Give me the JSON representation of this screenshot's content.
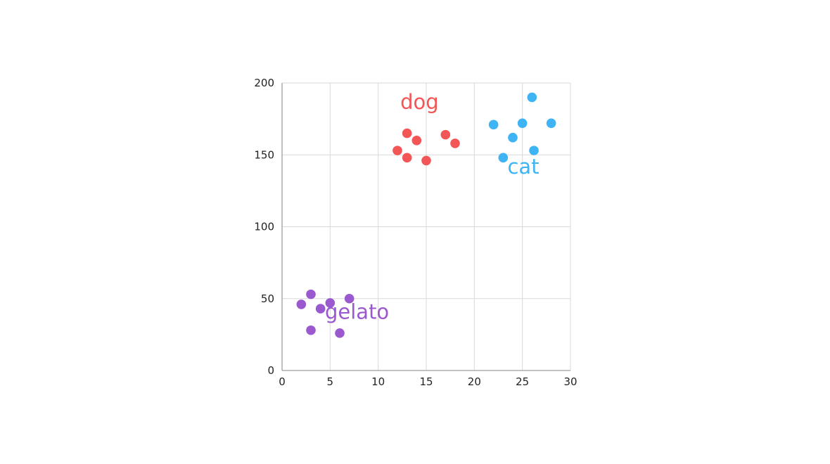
{
  "chart_data": {
    "type": "scatter",
    "title": "",
    "xlabel": "",
    "ylabel": "",
    "xlim": [
      0,
      30
    ],
    "ylim": [
      0,
      200
    ],
    "x_ticks": [
      0,
      5,
      10,
      15,
      20,
      25,
      30
    ],
    "y_ticks": [
      0,
      50,
      100,
      150,
      200
    ],
    "grid": true,
    "legend": "none (inline cluster labels)",
    "series": [
      {
        "name": "dog",
        "color": "#f25656",
        "label_pos": [
          14.3,
          182
        ],
        "points": [
          [
            12,
            153
          ],
          [
            13,
            165
          ],
          [
            13,
            148
          ],
          [
            14,
            160
          ],
          [
            15,
            146
          ],
          [
            17,
            164
          ],
          [
            18,
            158
          ]
        ]
      },
      {
        "name": "cat",
        "color": "#3fb4f5",
        "label_pos": [
          25.1,
          137
        ],
        "points": [
          [
            22,
            171
          ],
          [
            23,
            148
          ],
          [
            24,
            162
          ],
          [
            25,
            172
          ],
          [
            26,
            190
          ],
          [
            26.2,
            153
          ],
          [
            28,
            172
          ]
        ]
      },
      {
        "name": "gelato",
        "color": "#9b59cf",
        "label_pos": [
          7.8,
          36
        ],
        "points": [
          [
            2,
            46
          ],
          [
            3,
            53
          ],
          [
            3,
            28
          ],
          [
            4,
            43
          ],
          [
            5,
            47
          ],
          [
            6,
            26
          ],
          [
            7,
            50
          ]
        ]
      }
    ]
  }
}
